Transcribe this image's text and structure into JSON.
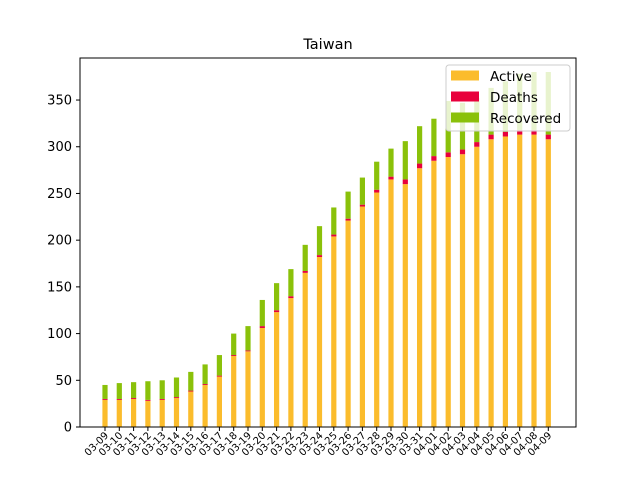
{
  "chart_data": {
    "type": "bar",
    "stacked": true,
    "title": "Taiwan",
    "xlabel": "",
    "ylabel": "",
    "ylim": [
      0,
      395
    ],
    "yticks": [
      0,
      50,
      100,
      150,
      200,
      250,
      300,
      350
    ],
    "grid": false,
    "legend_position": "top-right",
    "categories": [
      "03-09",
      "03-10",
      "03-11",
      "03-12",
      "03-13",
      "03-14",
      "03-15",
      "03-16",
      "03-17",
      "03-18",
      "03-19",
      "03-20",
      "03-21",
      "03-22",
      "03-23",
      "03-24",
      "03-25",
      "03-26",
      "03-27",
      "03-28",
      "03-29",
      "03-30",
      "03-31",
      "04-01",
      "04-02",
      "04-03",
      "04-04",
      "04-05",
      "04-06",
      "04-07",
      "04-08",
      "04-09"
    ],
    "series": [
      {
        "name": "Active",
        "color": "#fbbc2c",
        "values": [
          29,
          29,
          30,
          28,
          29,
          31,
          38,
          45,
          54,
          76,
          81,
          106,
          123,
          138,
          165,
          182,
          204,
          221,
          236,
          251,
          265,
          260,
          277,
          285,
          289,
          292,
          300,
          308,
          311,
          313,
          313,
          308
        ]
      },
      {
        "name": "Deaths",
        "color": "#e8003c",
        "values": [
          1,
          1,
          1,
          1,
          1,
          1,
          1,
          1,
          1,
          1,
          1,
          2,
          2,
          2,
          2,
          2,
          2,
          2,
          2,
          3,
          3,
          5,
          5,
          5,
          5,
          5,
          5,
          5,
          5,
          5,
          5,
          5
        ]
      },
      {
        "name": "Recovered",
        "color": "#8ac10a",
        "values": [
          15,
          17,
          17,
          20,
          20,
          21,
          20,
          21,
          22,
          23,
          26,
          28,
          29,
          29,
          28,
          31,
          29,
          29,
          29,
          30,
          30,
          41,
          40,
          40,
          55,
          50,
          47,
          50,
          54,
          60,
          62,
          67
        ]
      }
    ]
  }
}
